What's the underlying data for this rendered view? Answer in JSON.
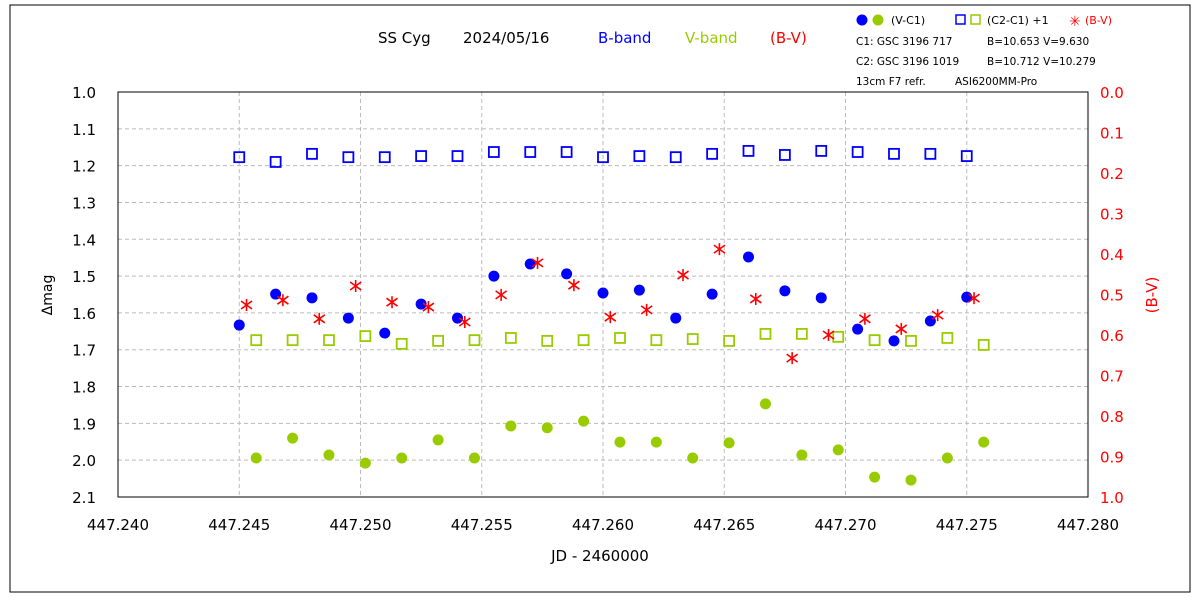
{
  "chart_data": {
    "type": "scatter",
    "title": {
      "object": "SS Cyg",
      "date": "2024/05/16",
      "b_label": "B-band",
      "v_label": "V-band",
      "bv_label": "(B-V)"
    },
    "legend": {
      "placement": "top-right",
      "vc1": "(V-C1)",
      "c2c1": "(C2-C1) +1",
      "bv": "(B-V)",
      "info": [
        "C1: GSC 3196 717",
        "B=10.653 V=9.630",
        "C2: GSC 3196 1019",
        "B=10.712 V=10.279",
        "13cm F7 refr.",
        "ASI6200MM-Pro"
      ]
    },
    "xlabel": "JD - 2460000",
    "ylabel": "Δmag",
    "y2label": "(B-V)",
    "xlim": [
      447.24,
      447.28
    ],
    "ylim": [
      1.0,
      2.1
    ],
    "y_inverted": true,
    "y2lim": [
      0.0,
      1.0
    ],
    "grid": true,
    "xticks": [
      "447.240",
      "447.245",
      "447.250",
      "447.255",
      "447.260",
      "447.265",
      "447.270",
      "447.275",
      "447.280"
    ],
    "yticks": [
      "1.0",
      "1.1",
      "1.2",
      "1.3",
      "1.4",
      "1.5",
      "1.6",
      "1.7",
      "1.8",
      "1.9",
      "2.0",
      "2.1"
    ],
    "y2ticks": [
      "0.0",
      "0.1",
      "0.2",
      "0.3",
      "0.4",
      "0.5",
      "0.6",
      "0.7",
      "0.8",
      "0.9",
      "1.0"
    ],
    "colors": {
      "b": "#0000ff",
      "v": "#99cc00",
      "bv": "#ff0000"
    },
    "series": [
      {
        "name": "B-band (V-C1)",
        "marker": "dot",
        "color": "#0000ff",
        "axis": "left",
        "x0": 447.245,
        "dx": 0.0015,
        "values": [
          1.633,
          1.549,
          1.559,
          1.614,
          1.655,
          1.576,
          1.614,
          1.5,
          1.467,
          1.494,
          1.546,
          1.538,
          1.614,
          1.549,
          1.448,
          1.54,
          1.559,
          1.644,
          1.676,
          1.622,
          1.557
        ]
      },
      {
        "name": "B-band (C2-C1)+1",
        "marker": "square",
        "color": "#0000ff",
        "axis": "left",
        "x0": 447.245,
        "dx": 0.0015,
        "values": [
          1.177,
          1.19,
          1.168,
          1.177,
          1.177,
          1.174,
          1.174,
          1.163,
          1.163,
          1.163,
          1.177,
          1.174,
          1.177,
          1.168,
          1.16,
          1.171,
          1.16,
          1.163,
          1.168,
          1.168,
          1.174
        ]
      },
      {
        "name": "V-band (V-C1)",
        "marker": "dot",
        "color": "#99cc00",
        "axis": "left",
        "x0": 447.2457,
        "dx": 0.0015,
        "values": [
          1.994,
          1.94,
          1.986,
          2.008,
          1.994,
          1.945,
          1.994,
          1.907,
          1.912,
          1.894,
          1.951,
          1.951,
          1.994,
          1.953,
          1.847,
          1.986,
          1.972,
          2.046,
          2.054,
          1.994,
          1.951
        ]
      },
      {
        "name": "V-band (C2-C1)+1",
        "marker": "square",
        "color": "#99cc00",
        "axis": "left",
        "x0": 447.2457,
        "dx": 0.0015,
        "values": [
          1.674,
          1.674,
          1.674,
          1.663,
          1.684,
          1.676,
          1.674,
          1.668,
          1.676,
          1.674,
          1.668,
          1.674,
          1.671,
          1.676,
          1.657,
          1.657,
          1.665,
          1.674,
          1.676,
          1.668,
          1.687
        ]
      },
      {
        "name": "(B-V)",
        "marker": "asterisk",
        "color": "#ff0000",
        "axis": "right",
        "x0": 447.2453,
        "dx": 0.0015,
        "values": [
          0.526,
          0.514,
          0.56,
          0.479,
          0.519,
          0.531,
          0.568,
          0.501,
          0.422,
          0.477,
          0.556,
          0.538,
          0.452,
          0.388,
          0.511,
          0.657,
          0.6,
          0.56,
          0.585,
          0.551,
          0.509
        ]
      }
    ]
  }
}
